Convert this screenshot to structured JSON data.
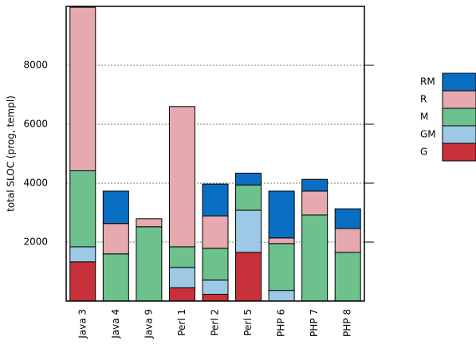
{
  "chart_data": {
    "type": "stacked_bar",
    "y_label": "total SLOC (prog, templ)",
    "categories": [
      "Java 3",
      "Java 4",
      "Java 9",
      "Perl 1",
      "Perl 2",
      "Perl 5",
      "PHP 6",
      "PHP 7",
      "PHP 8"
    ],
    "series": [
      {
        "name": "G",
        "color": "#c8303a",
        "values": [
          1330,
          0,
          0,
          450,
          230,
          1650,
          0,
          0,
          0
        ]
      },
      {
        "name": "GM",
        "color": "#9ec9e6",
        "values": [
          510,
          0,
          0,
          690,
          480,
          1430,
          360,
          0,
          0
        ]
      },
      {
        "name": "M",
        "color": "#6cc18c",
        "values": [
          2580,
          1600,
          2520,
          700,
          1080,
          860,
          1590,
          2920,
          1650
        ]
      },
      {
        "name": "R",
        "color": "#e5a9ae",
        "values": [
          5550,
          1030,
          270,
          4760,
          1100,
          0,
          190,
          810,
          810
        ]
      },
      {
        "name": "RM",
        "color": "#0a6fc2",
        "values": [
          0,
          1100,
          0,
          0,
          1080,
          400,
          1590,
          400,
          670
        ]
      }
    ],
    "ylim": [
      0,
      10000
    ],
    "yticks": [
      2000,
      4000,
      6000,
      8000
    ],
    "grid": true
  }
}
